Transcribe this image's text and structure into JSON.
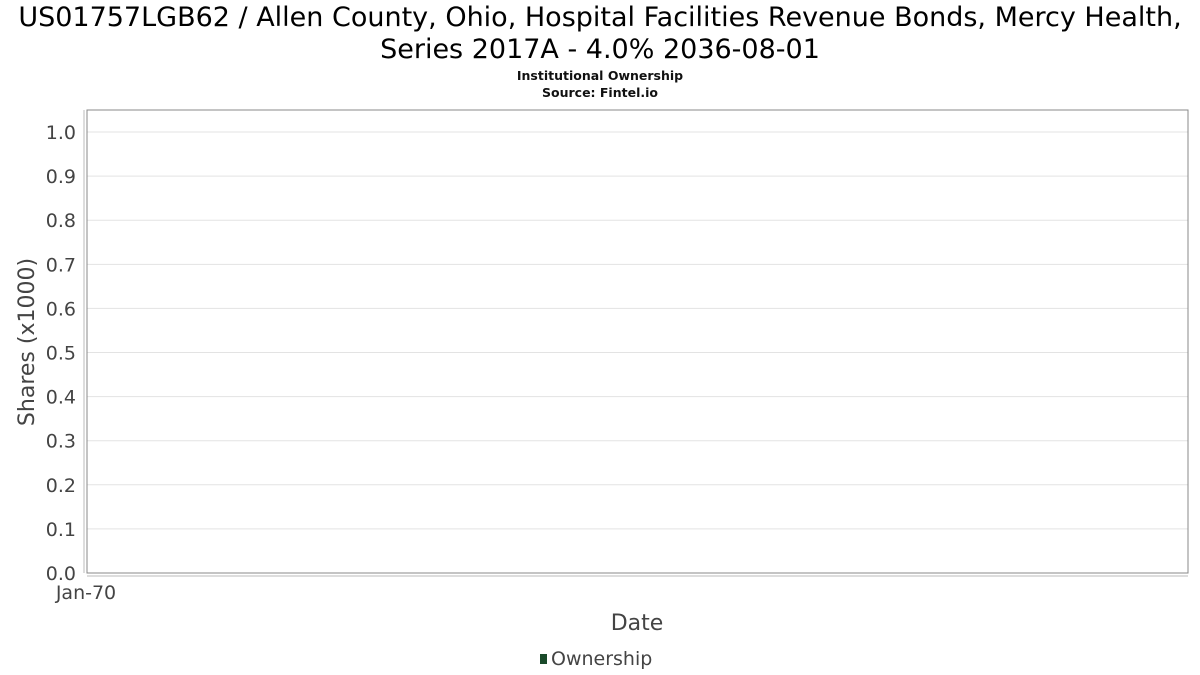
{
  "colors": {
    "background": "#ffffff",
    "plot_border": "#888888",
    "grid": "#e3e3e3",
    "text": "#444444",
    "series_ownership": "#1a4a2a"
  },
  "chart_data": {
    "type": "line",
    "title": "US01757LGB62 / Allen County, Ohio, Hospital Facilities Revenue Bonds, Mercy Health, Series 2017A - 4.0% 2036-08-01",
    "subtitle": "Institutional Ownership",
    "source": "Source: Fintel.io",
    "xlabel": "Date",
    "ylabel": "Shares (x1000)",
    "x_tick_labels": [
      "Jan-70"
    ],
    "y_ticks": [
      0.0,
      0.1,
      0.2,
      0.3,
      0.4,
      0.5,
      0.6,
      0.7,
      0.8,
      0.9,
      1.0
    ],
    "ylim": [
      0.0,
      1.05
    ],
    "grid": true,
    "legend_position": "bottom-center",
    "series": [
      {
        "name": "Ownership",
        "x": [],
        "values": []
      }
    ]
  }
}
